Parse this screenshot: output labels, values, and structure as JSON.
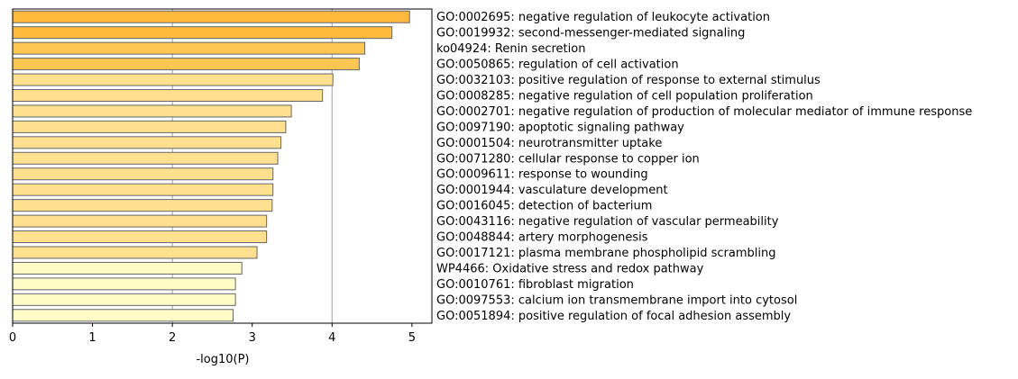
{
  "chart_data": {
    "type": "bar",
    "orientation": "horizontal",
    "xlabel": "-log10(P)",
    "ylabel": "",
    "xlim": [
      0,
      5.25
    ],
    "xticks": [
      0,
      1,
      2,
      3,
      4,
      5
    ],
    "grid": "vertical gridlines at x = 2 and x = 4",
    "legend": "none",
    "bar_edge_color": "#666666",
    "gridline_color": "#b0b0b0",
    "categories": [
      "GO:0002695: negative regulation of leukocyte activation",
      "GO:0019932: second-messenger-mediated signaling",
      "ko04924: Renin secretion",
      "GO:0050865: regulation of cell activation",
      "GO:0032103: positive regulation of response to external stimulus",
      "GO:0008285: negative regulation of cell population proliferation",
      "GO:0002701: negative regulation of production of molecular mediator of immune response",
      "GO:0097190: apoptotic signaling pathway",
      "GO:0001504: neurotransmitter uptake",
      "GO:0071280: cellular response to copper ion",
      "GO:0009611: response to wounding",
      "GO:0001944: vasculature development",
      "GO:0016045: detection of bacterium",
      "GO:0043116: negative regulation of vascular permeability",
      "GO:0048844: artery morphogenesis",
      "GO:0017121: plasma membrane phospholipid scrambling",
      "WP4466: Oxidative stress and redox pathway",
      "GO:0010761: fibroblast migration",
      "GO:0097553: calcium ion transmembrane import into cytosol",
      "GO:0051894: positive regulation of focal adhesion assembly"
    ],
    "values": [
      4.97,
      4.75,
      4.41,
      4.34,
      4.01,
      3.88,
      3.49,
      3.42,
      3.36,
      3.32,
      3.26,
      3.26,
      3.25,
      3.18,
      3.18,
      3.06,
      2.87,
      2.79,
      2.79,
      2.76
    ],
    "bar_colors": [
      "#FFB93D",
      "#FFB93D",
      "#FFC751",
      "#FFC751",
      "#FFE08E",
      "#FFE08E",
      "#FFE08E",
      "#FFE08E",
      "#FFE08E",
      "#FFE08E",
      "#FFE08E",
      "#FFE08E",
      "#FFE08E",
      "#FFE08E",
      "#FFE08E",
      "#FFE08E",
      "#FFFCC8",
      "#FFFCC8",
      "#FFFCC8",
      "#FFFCC8"
    ]
  }
}
